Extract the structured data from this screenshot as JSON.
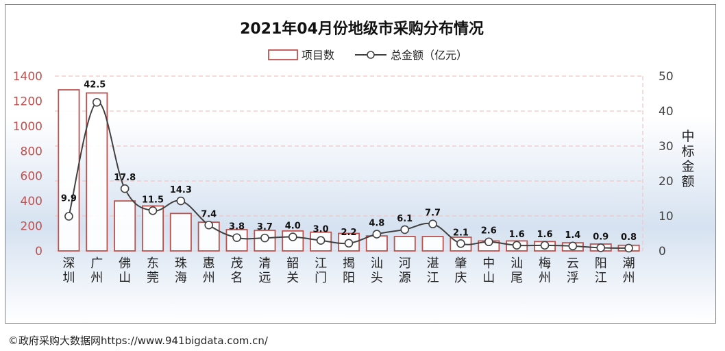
{
  "chart_data": {
    "type": "bar",
    "title": "2021年04月份地级市采购分布情况",
    "categories": [
      "深圳",
      "广州",
      "佛山",
      "东莞",
      "珠海",
      "惠州",
      "茂名",
      "清远",
      "韶关",
      "江门",
      "揭阳",
      "汕头",
      "河源",
      "湛江",
      "肇庆",
      "中山",
      "汕尾",
      "梅州",
      "云浮",
      "阳江",
      "潮州"
    ],
    "series": [
      {
        "name": "项目数",
        "type": "bar",
        "axis": "left",
        "values": [
          1290,
          1265,
          400,
          360,
          300,
          230,
          170,
          165,
          160,
          150,
          140,
          120,
          115,
          115,
          110,
          80,
          80,
          75,
          65,
          55,
          45
        ]
      },
      {
        "name": "总金额（亿元）",
        "type": "line",
        "axis": "right",
        "values": [
          9.9,
          42.5,
          17.8,
          11.5,
          14.3,
          7.4,
          3.8,
          3.7,
          4.0,
          3.0,
          2.2,
          4.8,
          6.1,
          7.7,
          2.1,
          2.6,
          1.6,
          1.6,
          1.4,
          0.9,
          0.8
        ],
        "labels": [
          "9.9",
          "42.5",
          "17.8",
          "11.5",
          "14.3",
          "7.4",
          "3.8",
          "3.7",
          "4.0",
          "3.0",
          "2.2",
          "4.8",
          "6.1",
          "7.7",
          "2.1",
          "2.6",
          "1.6",
          "1.6",
          "1.4",
          "0.9",
          "0.8"
        ]
      }
    ],
    "y_left": {
      "min": 0,
      "max": 1400,
      "ticks": [
        "0",
        "200",
        "400",
        "600",
        "800",
        "1000",
        "1200",
        "1400"
      ]
    },
    "y_right": {
      "min": 0,
      "max": 50,
      "ticks": [
        "0",
        "10",
        "20",
        "30",
        "40",
        "50"
      ],
      "label": "中标金额"
    },
    "legend_position": "top-center",
    "grid": true,
    "colors": {
      "bar_stroke": "#c0504d",
      "line": "#404040",
      "left_axis_text": "#c0504d",
      "right_axis_text": "#404040",
      "grid": "#f2c4c4"
    }
  },
  "footer": "©政府采购大数据网https://www.941bigdata.com.cn/"
}
